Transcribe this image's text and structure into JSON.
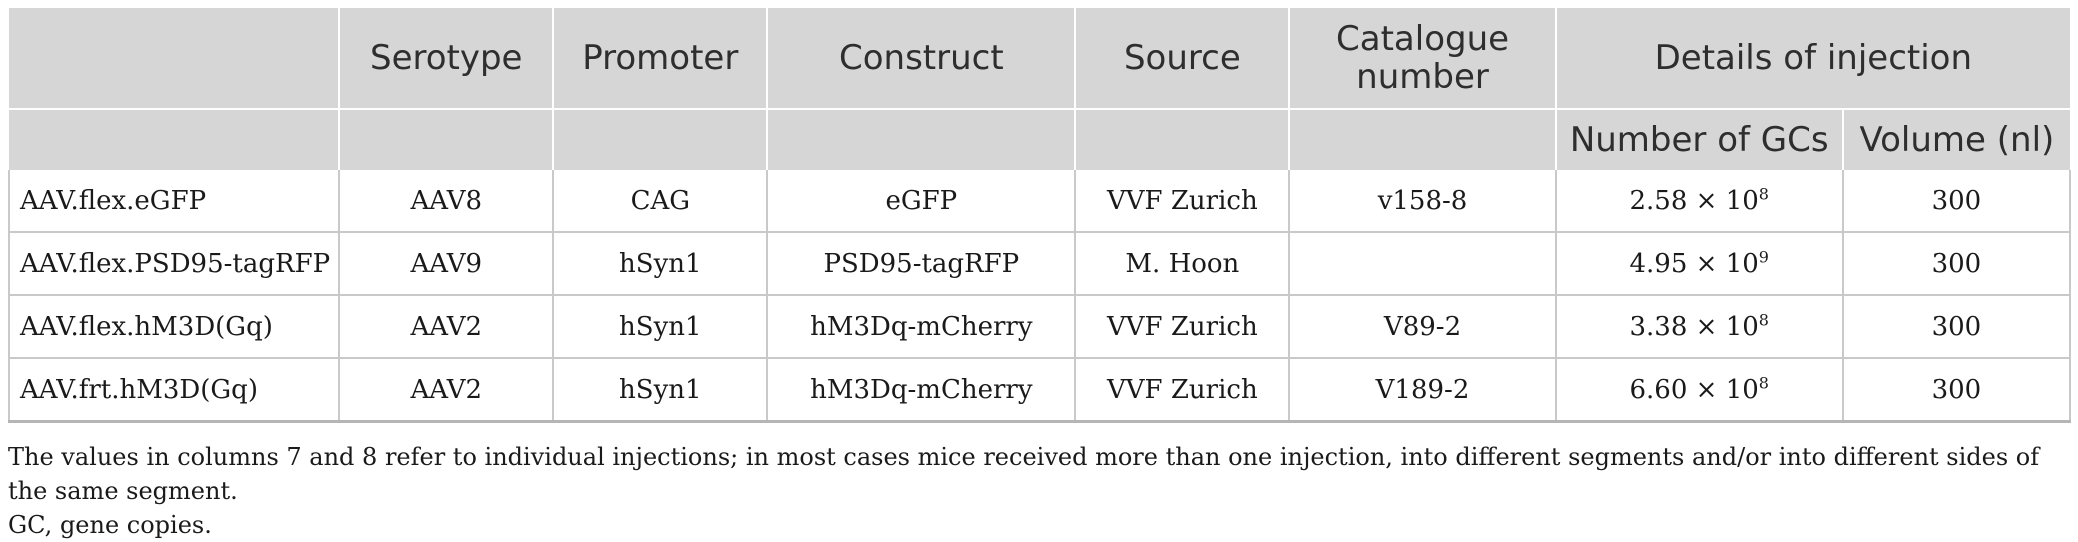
{
  "table": {
    "headers": [
      "",
      "Serotype",
      "Promoter",
      "Construct",
      "Source",
      "Catalogue number",
      "Details of injection"
    ],
    "subheaders": [
      "Number of GCs",
      "Volume (nl)"
    ],
    "rows": [
      {
        "name": "AAV.flex.eGFP",
        "serotype": "AAV8",
        "promoter": "CAG",
        "construct": "eGFP",
        "source": "VVF Zurich",
        "catalogue": "v158-8",
        "gc_base": "2.58 × 10",
        "gc_exp": "8",
        "volume": "300"
      },
      {
        "name": "AAV.flex.PSD95-tagRFP",
        "serotype": "AAV9",
        "promoter": "hSyn1",
        "construct": "PSD95-tagRFP",
        "source": "M. Hoon",
        "catalogue": "",
        "gc_base": "4.95 × 10",
        "gc_exp": "9",
        "volume": "300"
      },
      {
        "name": "AAV.flex.hM3D(Gq)",
        "serotype": "AAV2",
        "promoter": "hSyn1",
        "construct": "hM3Dq-mCherry",
        "source": "VVF Zurich",
        "catalogue": "V89-2",
        "gc_base": "3.38 × 10",
        "gc_exp": "8",
        "volume": "300"
      },
      {
        "name": "AAV.frt.hM3D(Gq)",
        "serotype": "AAV2",
        "promoter": "hSyn1",
        "construct": "hM3Dq-mCherry",
        "source": "VVF Zurich",
        "catalogue": "V189-2",
        "gc_base": "6.60 × 10",
        "gc_exp": "8",
        "volume": "300"
      }
    ]
  },
  "footnote": {
    "line1": "The values in columns 7 and 8 refer to individual injections; in most cases mice received more than one injection, into different segments and/or into different sides of the same segment.",
    "line2": "GC, gene copies."
  }
}
